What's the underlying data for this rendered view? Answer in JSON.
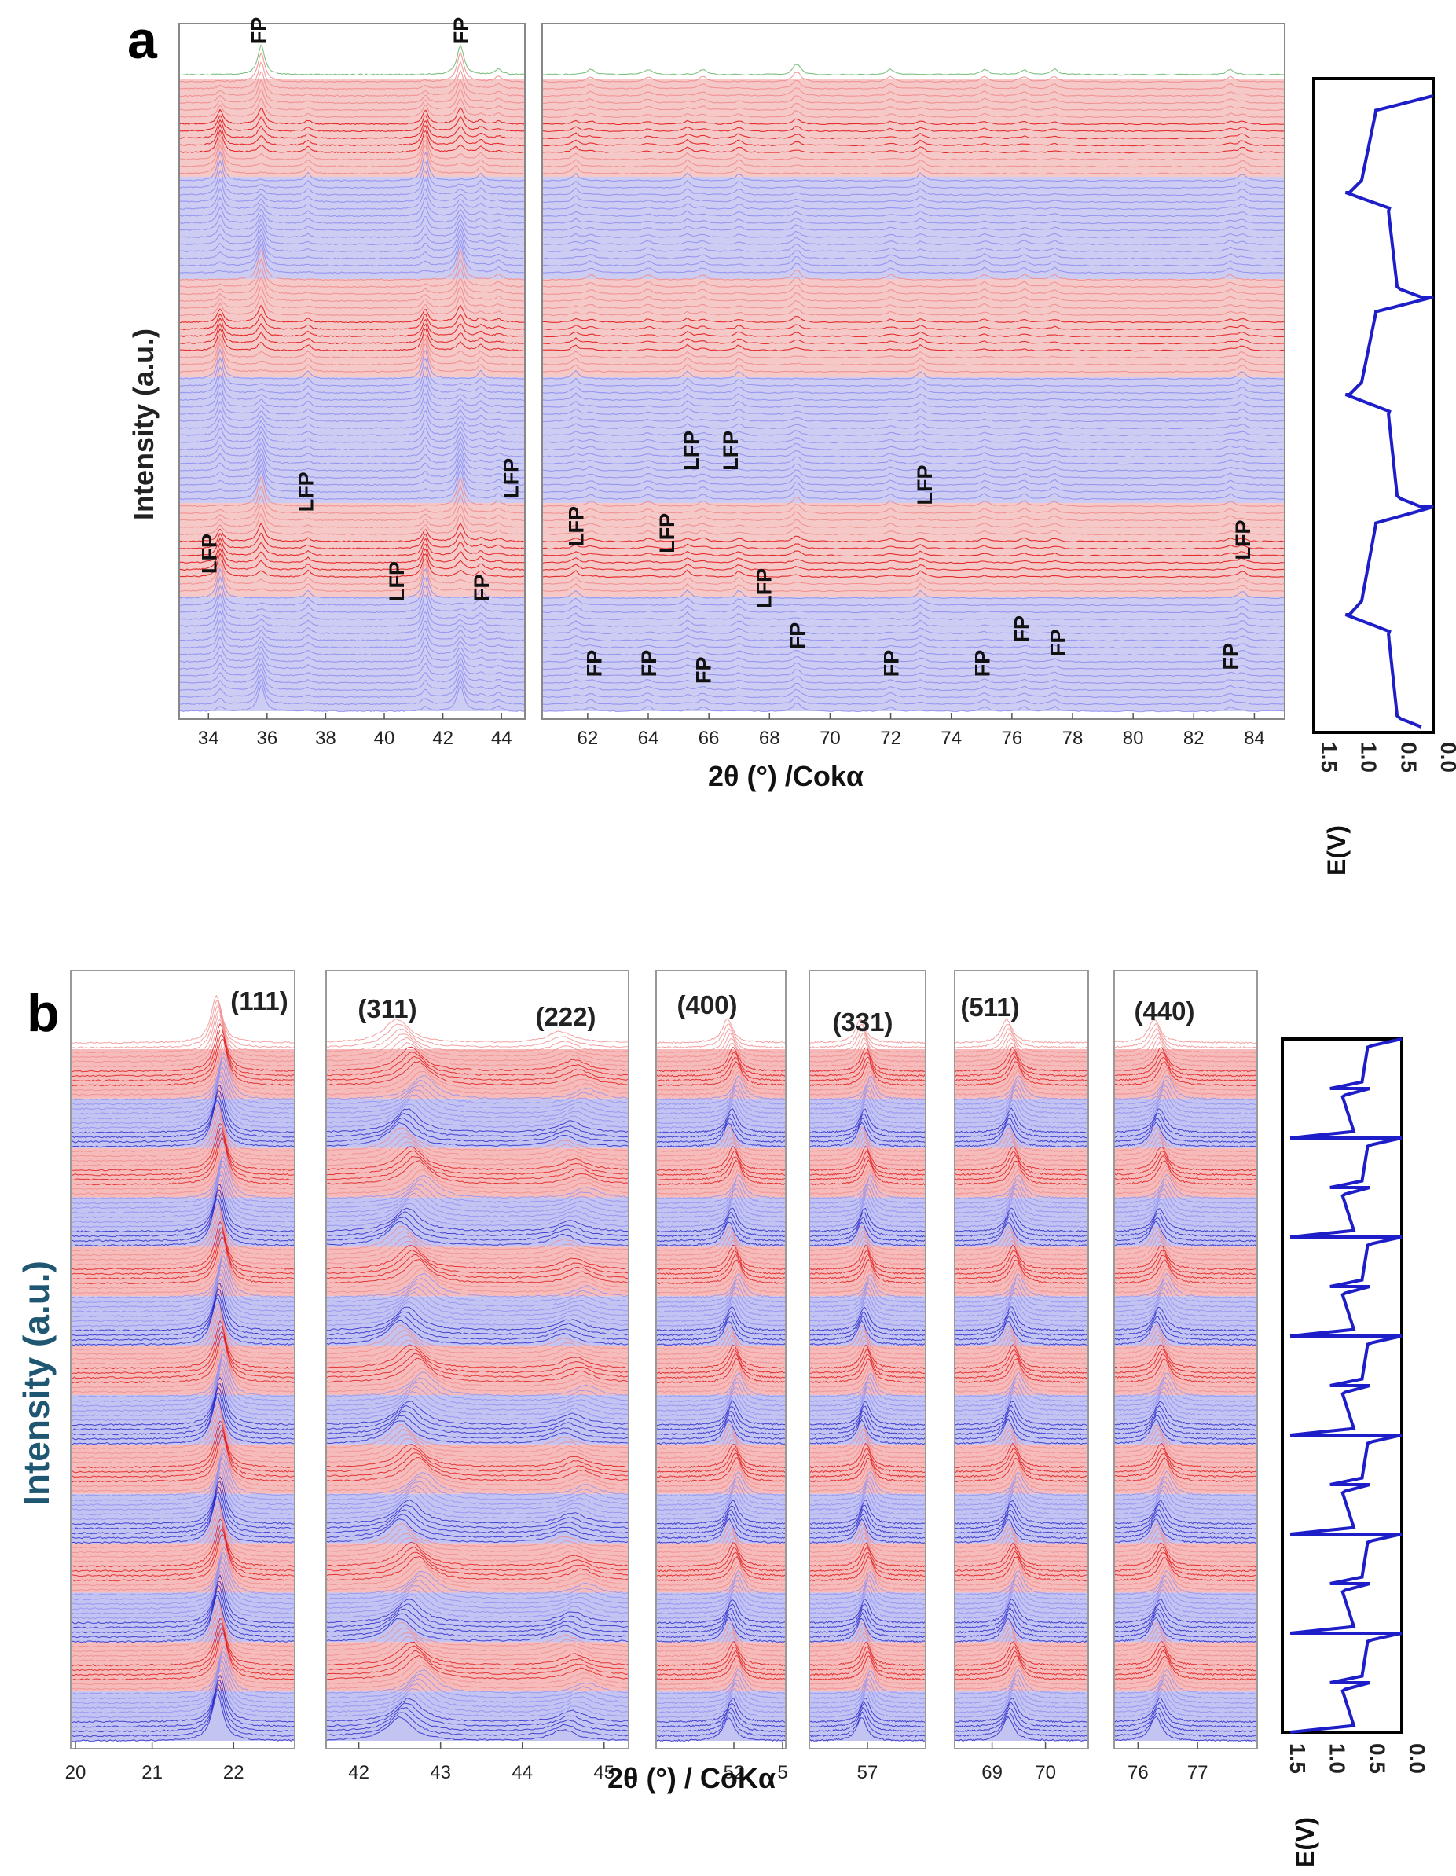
{
  "colors": {
    "charge": "#f08a8a",
    "discharge": "#8d8df0",
    "chargeStrong": "#e01010",
    "dischargeStrong": "#2020c8",
    "final": "#6bb56b",
    "voltage": "#1e1ec8",
    "ylabel_b": "#1f5672"
  },
  "chart_data": [
    {
      "panel": "a",
      "type": "line",
      "description_key": "stacked operando XRD patterns",
      "xlabel": "2θ (°) /Cokα",
      "ylabel": "Intensity (a.u.)",
      "segments": [
        {
          "xlim": [
            33,
            44.8
          ],
          "ticks": [
            34,
            36,
            38,
            40,
            42,
            44
          ]
        },
        {
          "xlim": [
            60.5,
            85
          ],
          "ticks": [
            62,
            64,
            66,
            68,
            70,
            72,
            74,
            76,
            78,
            80,
            82,
            84
          ]
        }
      ],
      "peaks_LFP": [
        34.4,
        37.4,
        41.4,
        43.3,
        61.6,
        65.3,
        67.0,
        73.0,
        83.6
      ],
      "peaks_FP": [
        35.8,
        42.6,
        43.9,
        62.1,
        64.0,
        65.8,
        68.9,
        72.0,
        75.1,
        76.4,
        77.4,
        83.2
      ],
      "annotations": [
        {
          "label": "FP",
          "x": 35.7,
          "level": 0.97
        },
        {
          "label": "FP",
          "x": 42.6,
          "level": 0.97
        },
        {
          "label": "LFP",
          "x": 34.0,
          "level": 0.2
        },
        {
          "label": "LFP",
          "x": 37.3,
          "level": 0.29
        },
        {
          "label": "LFP",
          "x": 40.4,
          "level": 0.16
        },
        {
          "label": "FP",
          "x": 43.3,
          "level": 0.16
        },
        {
          "label": "LFP",
          "x": 44.3,
          "level": 0.31
        },
        {
          "label": "LFP",
          "x": 61.6,
          "level": 0.24
        },
        {
          "label": "FP",
          "x": 62.2,
          "level": 0.05
        },
        {
          "label": "FP",
          "x": 64.0,
          "level": 0.05
        },
        {
          "label": "LFP",
          "x": 64.6,
          "level": 0.23
        },
        {
          "label": "LFP",
          "x": 65.4,
          "level": 0.35
        },
        {
          "label": "FP",
          "x": 65.8,
          "level": 0.04
        },
        {
          "label": "LFP",
          "x": 66.7,
          "level": 0.35
        },
        {
          "label": "LFP",
          "x": 67.8,
          "level": 0.15
        },
        {
          "label": "FP",
          "x": 68.9,
          "level": 0.09
        },
        {
          "label": "FP",
          "x": 72.0,
          "level": 0.05
        },
        {
          "label": "LFP",
          "x": 73.1,
          "level": 0.3
        },
        {
          "label": "FP",
          "x": 75.0,
          "level": 0.05
        },
        {
          "label": "FP",
          "x": 76.3,
          "level": 0.1
        },
        {
          "label": "FP",
          "x": 77.5,
          "level": 0.08
        },
        {
          "label": "FP",
          "x": 83.2,
          "level": 0.06
        },
        {
          "label": "LFP",
          "x": 83.6,
          "level": 0.22
        }
      ],
      "bands_bottom_to_top": [
        "discharge",
        "charge",
        "discharge",
        "charge",
        "discharge",
        "charge",
        "final"
      ],
      "voltage_profile": {
        "label": "E(V)",
        "ticks": [
          "1.5",
          "1.0",
          "0.5",
          "0.0"
        ],
        "range_V": [
          1.5,
          0.0
        ],
        "cycles_discharge_plateau_V": 0.95,
        "cycles_charge_plateau_V": 0.5,
        "turning_points_V": [
          0.0,
          1.05,
          0.0,
          1.08,
          0.0,
          1.05,
          0.0
        ]
      }
    },
    {
      "panel": "b",
      "type": "line",
      "description_key": "stacked operando XRD patterns",
      "xlabel": "2θ (°) / CoKα",
      "ylabel": "Intensity (a.u.)",
      "segments": [
        {
          "reflection": "(111)",
          "xlim": [
            20,
            22.75
          ],
          "ticks": [
            "20",
            "21",
            "22"
          ],
          "peak": 21.8
        },
        {
          "reflections": [
            "(311)",
            "(222)"
          ],
          "xlim": [
            41.6,
            45.3
          ],
          "ticks": [
            "42",
            "43",
            "44",
            "45"
          ],
          "peaks": [
            42.5,
            44.5
          ]
        },
        {
          "reflection": "(400)",
          "xlim": [
            50.5,
            53.0
          ],
          "ticks": [
            "52",
            "5"
          ],
          "peak": 51.9
        },
        {
          "reflection": "(331)",
          "xlim": [
            55.0,
            59.0
          ],
          "ticks": [
            "57"
          ],
          "peak": 56.8
        },
        {
          "reflection": "(511)",
          "xlim": [
            68.3,
            70.8
          ],
          "ticks": [
            "69",
            "70"
          ],
          "peak": 69.3
        },
        {
          "reflection": "(440)",
          "xlim": [
            75.6,
            78.0
          ],
          "ticks": [
            "76",
            "77"
          ],
          "peak": 76.3
        }
      ],
      "bands_bottom_to_top": [
        "discharge",
        "charge",
        "discharge",
        "charge",
        "discharge",
        "charge",
        "discharge",
        "charge",
        "discharge",
        "charge",
        "discharge",
        "charge",
        "discharge",
        "charge"
      ],
      "voltage_profile": {
        "label": "E(V)",
        "ticks": [
          "1.5",
          "1.0",
          "0.5",
          "0.0"
        ],
        "range_V": [
          1.5,
          0.0
        ],
        "cycles": 7
      }
    }
  ],
  "labels": {
    "panel_a": "a",
    "panel_b": "b"
  }
}
